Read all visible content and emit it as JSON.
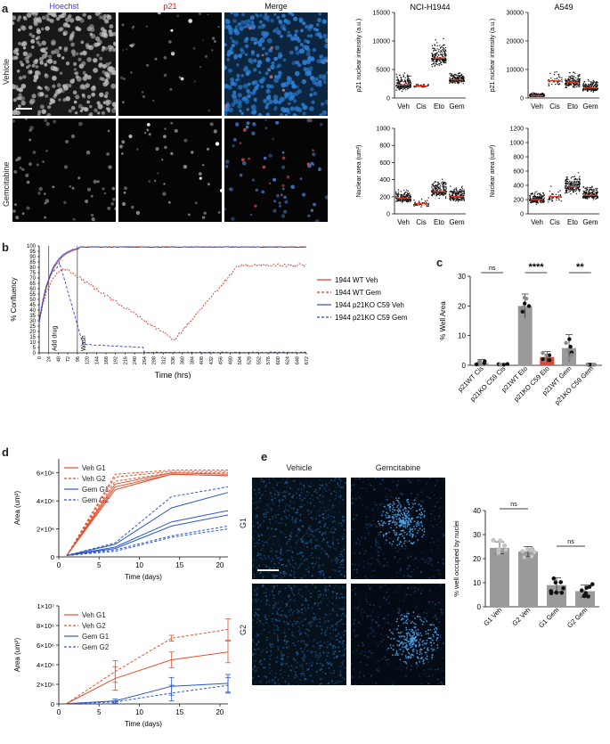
{
  "panels": {
    "a": {
      "label": "a",
      "channels": [
        "Hoechst",
        "p21",
        "Merge"
      ],
      "rows": [
        "Vehicle",
        "Gemcitabine"
      ],
      "charts": [
        {
          "title": "NCI-H1944",
          "ylabel": "p21 nuclear intensity (a.u.)",
          "yticks": [
            "0",
            "5000",
            "10000",
            "15000"
          ],
          "ylim": [
            0,
            15000
          ],
          "categories": [
            "Veh",
            "Cis",
            "Eto",
            "Gem"
          ],
          "medians": [
            2300,
            2100,
            7000,
            3200
          ],
          "spreads": [
            2500,
            600,
            4000,
            1500
          ]
        },
        {
          "title": "A549",
          "ylabel": "p21 nuclear intensity (a.u.)",
          "yticks": [
            "0",
            "10000",
            "20000",
            "30000"
          ],
          "ylim": [
            0,
            30000
          ],
          "categories": [
            "Veh",
            "Cis",
            "Eto",
            "Gem"
          ],
          "medians": [
            800,
            6000,
            5500,
            3500
          ],
          "spreads": [
            1500,
            5000,
            4500,
            3500
          ]
        },
        {
          "title": "",
          "ylabel": "Nuclear area (um²)",
          "yticks": [
            "0",
            "200",
            "400",
            "600",
            "800",
            "1000"
          ],
          "ylim": [
            0,
            1000
          ],
          "categories": [
            "Veh",
            "Cis",
            "Eto",
            "Gem"
          ],
          "medians": [
            180,
            120,
            260,
            200
          ],
          "spreads": [
            120,
            90,
            180,
            140
          ]
        },
        {
          "title": "",
          "ylabel": "Nuclear area (um²)",
          "yticks": [
            "0",
            "200",
            "400",
            "600",
            "800",
            "1000",
            "1200"
          ],
          "ylim": [
            0,
            1200
          ],
          "categories": [
            "Veh",
            "Cis",
            "Eto",
            "Gem"
          ],
          "medians": [
            200,
            240,
            380,
            260
          ],
          "spreads": [
            150,
            200,
            240,
            170
          ]
        }
      ]
    },
    "b": {
      "label": "b",
      "ylabel": "% Confluency",
      "xlabel": "Time (hrs)",
      "yticks": [
        "0",
        "5",
        "10",
        "15",
        "20",
        "25",
        "30",
        "35",
        "40",
        "45",
        "50",
        "55",
        "60",
        "65",
        "70",
        "75",
        "80",
        "85",
        "90",
        "95",
        "100"
      ],
      "xticks": [
        "0",
        "24",
        "48",
        "72",
        "96",
        "120",
        "144",
        "168",
        "192",
        "216",
        "240",
        "264",
        "288",
        "312",
        "336",
        "360",
        "384",
        "408",
        "432",
        "456",
        "480",
        "504",
        "528",
        "552",
        "576",
        "600",
        "624",
        "648",
        "672"
      ],
      "annotations": [
        "Add drug",
        "Wash"
      ],
      "legend": [
        "1944  WT Veh",
        "1944  WT Gem",
        "1944  p21KO C59 Veh",
        "1944  p21KO C59 Gem"
      ],
      "colors": {
        "wt": "#d63a2a",
        "ko": "#2b47c7"
      }
    },
    "c": {
      "label": "c",
      "ylabel": "% Well Area",
      "yticks": [
        "0",
        "10",
        "20",
        "30"
      ],
      "ylim": [
        0,
        30
      ],
      "categories": [
        "p21WT Cis",
        "p21KO C59 Cis",
        "p21WT Eto",
        "p21KO C59 Eto",
        "p21WT Gem",
        "p21KO C59 Gem"
      ],
      "values": [
        0.8,
        0.3,
        20.0,
        2.8,
        5.8,
        0.1
      ],
      "errors": [
        1.2,
        0.3,
        4.0,
        1.8,
        4.5,
        0.1
      ],
      "bar_colors": [
        "#9a9a9a",
        "#9a9a9a",
        "#9a9a9a",
        "#e8452f",
        "#9a9a9a",
        "#9a9a9a"
      ],
      "sig": [
        "ns",
        "****",
        "**"
      ]
    },
    "d": {
      "label": "d",
      "top": {
        "ylabel": "Area (um²)",
        "xlabel": "Time (days)",
        "yticks": [
          "0",
          "2×10⁶",
          "4×10⁶",
          "6×10⁶"
        ],
        "xticks": [
          "0",
          "5",
          "10",
          "15",
          "20"
        ],
        "legend": [
          "Veh G1",
          "Veh G2",
          "Gem G1",
          "Gem G2"
        ]
      },
      "bottom": {
        "ylabel": "Area (um²)",
        "xlabel": "Time (days)",
        "yticks": [
          "0",
          "2×10⁶",
          "4×10⁶",
          "6×10⁶",
          "8×10⁶",
          "1×10⁷"
        ],
        "xticks": [
          "0",
          "5",
          "10",
          "15",
          "20"
        ],
        "legend": [
          "Veh G1",
          "Veh G2",
          "Gem G1",
          "Gem G2"
        ],
        "x": [
          1,
          7,
          14,
          21
        ],
        "series": [
          {
            "name": "Veh G1",
            "values": [
              0.05,
              2.6,
              4.5,
              5.3
            ],
            "err": [
              0,
              1.2,
              0.8,
              1.1
            ]
          },
          {
            "name": "Veh G2",
            "values": [
              0.05,
              3.3,
              6.7,
              7.6
            ],
            "err": [
              0,
              1.1,
              0.3,
              1.1
            ]
          },
          {
            "name": "Gem G1",
            "values": [
              0.02,
              0.3,
              1.8,
              2.1
            ],
            "err": [
              0,
              0.2,
              0.9,
              0.9
            ]
          },
          {
            "name": "Gem G2",
            "values": [
              0.02,
              0.2,
              1.1,
              1.9
            ],
            "err": [
              0,
              0.1,
              0.8,
              0.8
            ]
          }
        ]
      }
    },
    "e": {
      "label": "e",
      "columns": [
        "Vehicle",
        "Gemcitabine"
      ],
      "rows": [
        "G1",
        "G2"
      ],
      "chart": {
        "ylabel": "% well occupied by nuclei",
        "yticks": [
          "0",
          "10",
          "20",
          "30",
          "40"
        ],
        "ylim": [
          0,
          40
        ],
        "categories": [
          "G1 Veh",
          "G2 Veh",
          "G1 Gem",
          "G2 Gem"
        ],
        "values": [
          24.5,
          23.0,
          9.0,
          6.5
        ],
        "errors": [
          2.5,
          2.0,
          3.0,
          2.5
        ],
        "sig": [
          "ns",
          "ns"
        ]
      }
    }
  }
}
